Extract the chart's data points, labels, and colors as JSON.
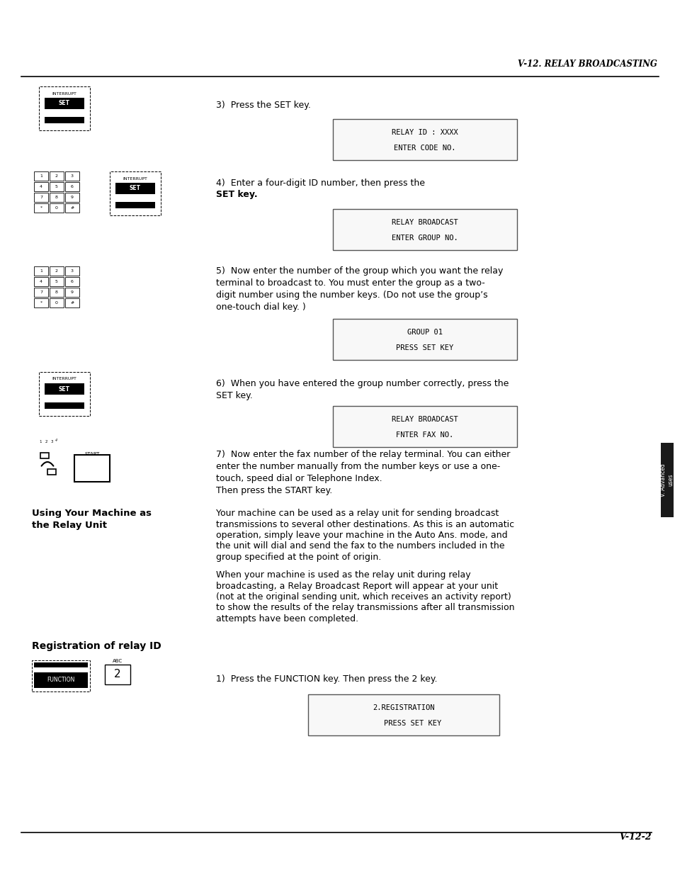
{
  "bg_color": "#ffffff",
  "page_width": 9.54,
  "page_height": 12.35,
  "dpi": 100,
  "header_title": "V-12. RELAY BROADCASTING",
  "footer_text": "V-12-2",
  "display1_line1": "RELAY ID : XXXX",
  "display1_line2": "ENTER CODE NO.",
  "display2_line1": "RELAY BROADCAST",
  "display2_line2": "ENTER GROUP NO.",
  "display3_line1": "GROUP 01",
  "display3_line2": "PRESS SET KEY",
  "display4_line1": "RELAY BROADCAST",
  "display4_line2": "FNTER FAX NO.",
  "display5_line1": "2.REGISTRATION",
  "display5_line2": "    PRESS SET KEY",
  "step3_text": "3)  Press the SET key.",
  "step4_text": "4)  Enter a four-digit ID number, then press the",
  "step4_bold": "SET",
  "step4_text2": "key.",
  "step5_lines": [
    "5)  Now enter the number of the group which you want the relay",
    "terminal to broadcast to. You must enter the group as a two-",
    "digit number using the number keys. (Do not use the group’s",
    "one-touch dial key. )"
  ],
  "step6_lines": [
    "6)  When you have entered the group number correctly, press the",
    "SET key."
  ],
  "step7_lines": [
    "7)  Now enter the fax number of the relay terminal. You can either",
    "enter the number manually from the number keys or use a one-",
    "touch, speed dial or Telephone Index.",
    "Then press the START key."
  ],
  "section1_heading1": "Using Your Machine as",
  "section1_heading2": "the Relay Unit",
  "section1_para1_lines": [
    "Your machine can be used as a relay unit for sending broadcast",
    "transmissions to several other destinations. As this is an automatic",
    "operation, simply leave your machine in the Auto Ans. mode, and",
    "the unit will dial and send the fax to the numbers included in the",
    "group specified at the point of origin."
  ],
  "section1_para2_lines": [
    "When your machine is used as the relay unit during relay",
    "broadcasting, a Relay Broadcast Report will appear at your unit",
    "(not at the original sending unit, which receives an activity report)",
    "to show the results of the relay transmissions after all transmission",
    "attempts have been completed."
  ],
  "section2_heading": "Registration of relay ID",
  "reg_step1_text": "1)  Press the FUNCTION key. Then press the 2 key.",
  "tab_label": "V. Advanced\nuses",
  "tab_bg": "#1a1a1a"
}
